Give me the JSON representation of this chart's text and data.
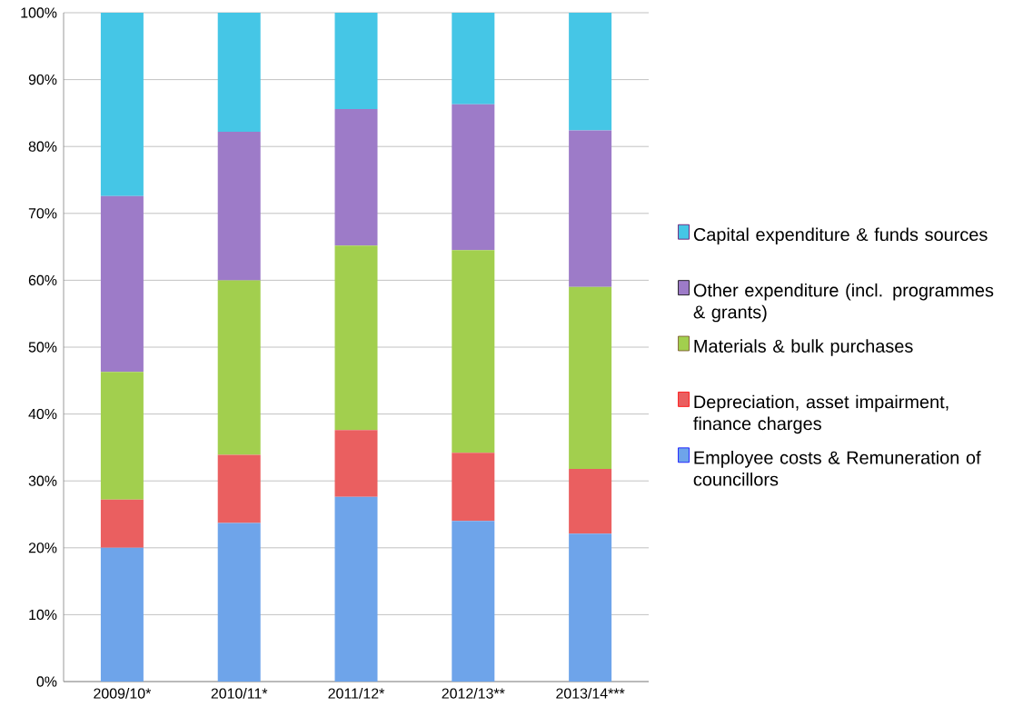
{
  "chart_data": {
    "type": "bar",
    "stacked": true,
    "categories": [
      "2009/10*",
      "2010/11*",
      "2011/12*",
      "2012/13**",
      "2013/14***"
    ],
    "series": [
      {
        "name": "Employee costs & Remuneration of councillors",
        "color": "#6ea4ea",
        "values": [
          20,
          23.7,
          27.6,
          24,
          22.1
        ]
      },
      {
        "name": "Depreciation, asset impairment, finance charges",
        "color": "#ea5f60",
        "values": [
          7.2,
          10.2,
          10,
          10.2,
          9.7
        ]
      },
      {
        "name": "Materials & bulk purchases",
        "color": "#a2cf4e",
        "values": [
          19.1,
          26.1,
          27.6,
          30.3,
          27.2
        ]
      },
      {
        "name": "Other expenditure (incl. programmes & grants)",
        "color": "#9d7bc8",
        "values": [
          26.3,
          22.2,
          20.4,
          21.8,
          23.4
        ]
      },
      {
        "name": "Capital expenditure & funds sources",
        "color": "#45c6e6",
        "values": [
          27.4,
          17.8,
          14.4,
          13.7,
          17.6
        ]
      }
    ],
    "ylim": [
      0,
      100
    ],
    "yticks": [
      {
        "value": 0,
        "label": "0%"
      },
      {
        "value": 10,
        "label": "10%"
      },
      {
        "value": 20,
        "label": "20%"
      },
      {
        "value": 30,
        "label": "30%"
      },
      {
        "value": 40,
        "label": "40%"
      },
      {
        "value": 50,
        "label": "50%"
      },
      {
        "value": 60,
        "label": "60%"
      },
      {
        "value": 70,
        "label": "70%"
      },
      {
        "value": 80,
        "label": "80%"
      },
      {
        "value": 90,
        "label": "90%"
      },
      {
        "value": 100,
        "label": "100%"
      }
    ],
    "grid": "y",
    "legend": "right"
  }
}
